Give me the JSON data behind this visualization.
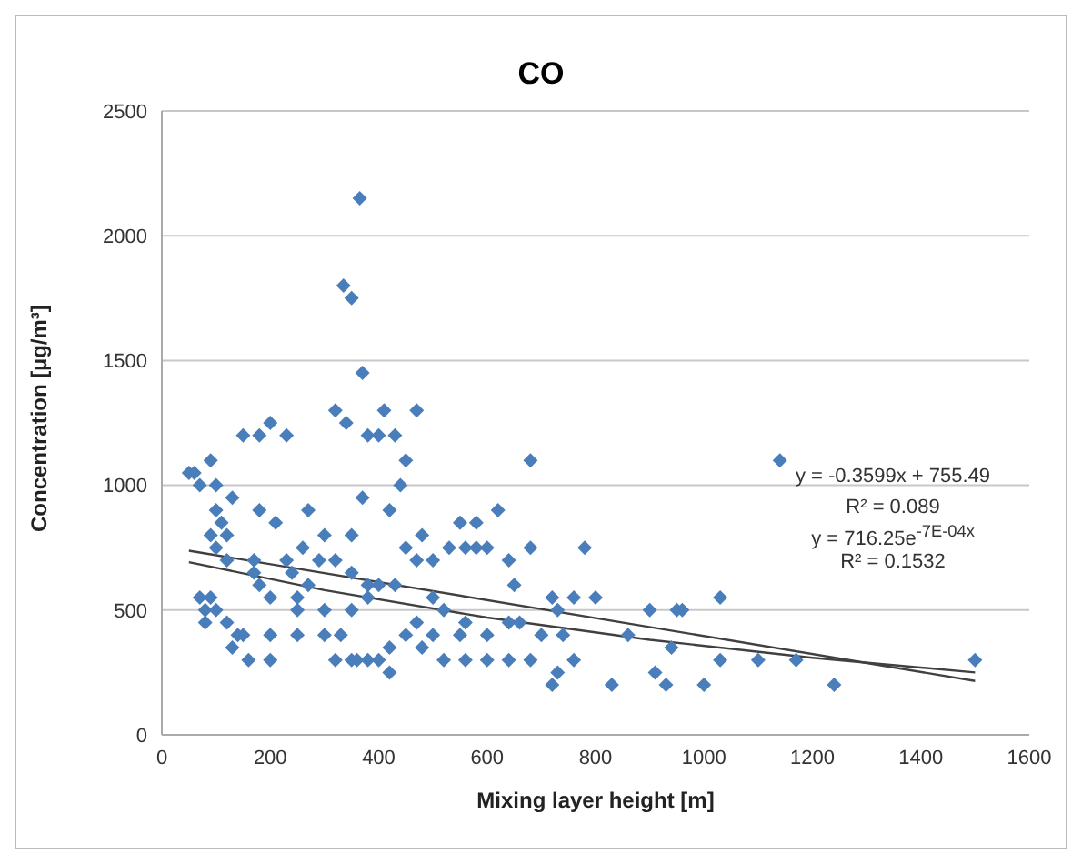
{
  "chart_data": {
    "type": "scatter",
    "title": "CO",
    "xlabel": "Mixing layer height [m]",
    "ylabel": "Concentration [µg/m³]",
    "xlim": [
      0,
      1600
    ],
    "xticks": [
      0,
      200,
      400,
      600,
      800,
      1000,
      1200,
      1400,
      1600
    ],
    "ylim": [
      0,
      2500
    ],
    "yticks": [
      0,
      500,
      1000,
      1500,
      2000,
      2500
    ],
    "grid": "y",
    "legend": false,
    "annotations": [
      "y = -0.3599x + 755.49",
      "R² = 0.089",
      "y = 716.25e$^{-7E-04x}$",
      "R² = 0.1532"
    ],
    "series": [
      {
        "marker": "diamond",
        "color": "#4a7ebb",
        "x": [
          365,
          335,
          350,
          370,
          320,
          340,
          410,
          470,
          180,
          200,
          230,
          150,
          380,
          400,
          430,
          450,
          1140,
          680,
          90,
          60,
          70,
          50,
          100,
          130,
          370,
          440,
          420,
          620,
          180,
          270,
          100,
          110,
          120,
          90,
          100,
          120,
          170,
          210,
          230,
          260,
          290,
          170,
          180,
          200,
          250,
          320,
          350,
          350,
          380,
          400,
          450,
          470,
          480,
          500,
          530,
          560,
          580,
          600,
          680,
          580,
          550,
          500,
          520,
          560,
          640,
          660,
          720,
          760,
          780,
          800,
          730,
          650,
          640,
          90,
          80,
          70,
          80,
          100,
          120,
          150,
          200,
          250,
          250,
          300,
          300,
          320,
          350,
          360,
          380,
          400,
          420,
          450,
          480,
          500,
          520,
          560,
          600,
          640,
          680,
          720,
          730,
          760,
          830,
          910,
          930,
          950,
          960,
          1000,
          1030,
          1030,
          1100,
          1170,
          1240,
          1500,
          900,
          940,
          860,
          130,
          330,
          350,
          380,
          420,
          550,
          600,
          700,
          740,
          430,
          470,
          200,
          160,
          140,
          300,
          270,
          240
        ],
        "values": [
          2150,
          1800,
          1750,
          1450,
          1300,
          1250,
          1300,
          1300,
          1200,
          1250,
          1200,
          1200,
          1200,
          1200,
          1200,
          1100,
          1100,
          1100,
          1100,
          1050,
          1000,
          1050,
          1000,
          950,
          950,
          1000,
          900,
          900,
          900,
          900,
          900,
          850,
          800,
          800,
          750,
          700,
          700,
          850,
          700,
          750,
          700,
          650,
          600,
          550,
          550,
          700,
          800,
          650,
          600,
          600,
          750,
          700,
          800,
          700,
          750,
          750,
          750,
          750,
          750,
          850,
          850,
          550,
          500,
          450,
          450,
          450,
          550,
          550,
          750,
          550,
          500,
          600,
          700,
          550,
          500,
          550,
          450,
          500,
          450,
          400,
          400,
          500,
          400,
          400,
          500,
          300,
          300,
          300,
          300,
          300,
          250,
          400,
          350,
          400,
          300,
          300,
          300,
          300,
          300,
          200,
          250,
          300,
          200,
          250,
          200,
          500,
          500,
          200,
          300,
          550,
          300,
          300,
          200,
          300,
          500,
          350,
          400,
          350,
          400,
          500,
          550,
          350,
          400,
          400,
          400,
          400,
          600,
          450,
          300,
          300,
          400,
          800,
          600,
          650
        ]
      },
      {
        "type": "line",
        "color": "#404040",
        "x": [
          50,
          1500
        ],
        "values": [
          738,
          216
        ]
      },
      {
        "type": "line",
        "color": "#404040",
        "x": [
          50,
          300,
          600,
          900,
          1200,
          1500
        ],
        "values": [
          692,
          580,
          470,
          381,
          309,
          250
        ]
      }
    ]
  }
}
